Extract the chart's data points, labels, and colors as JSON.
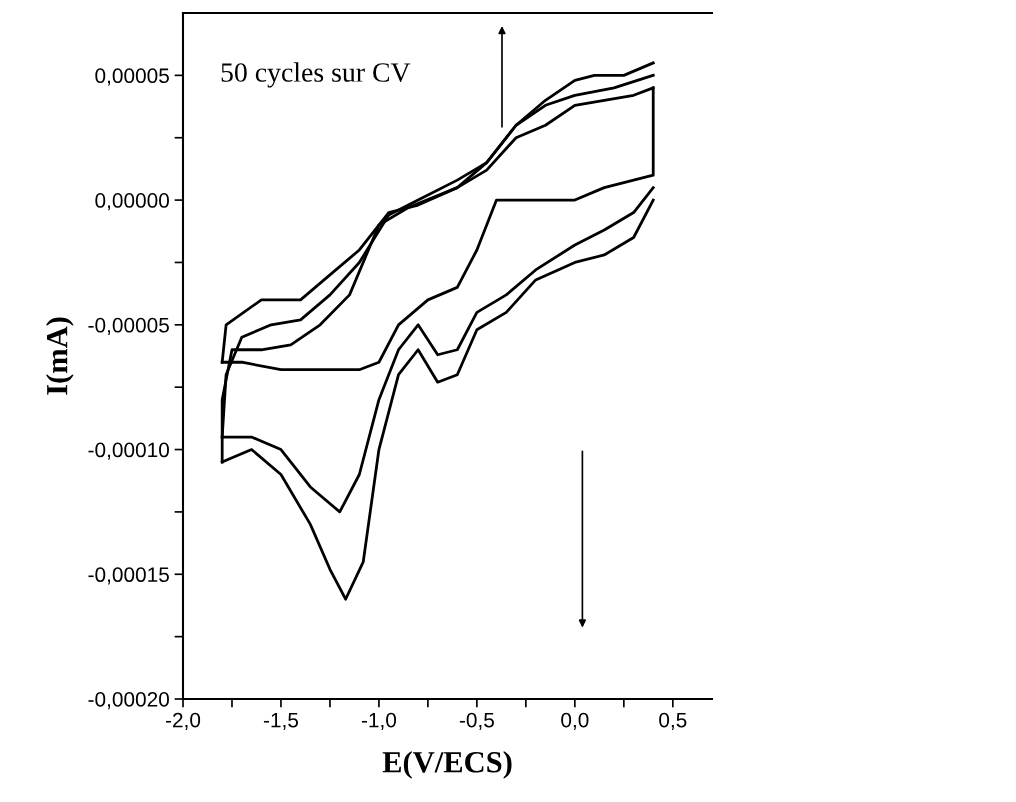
{
  "chart_data": {
    "type": "line",
    "xlabel": "E(V/ECS)",
    "ylabel": "I(mA)",
    "annotations": [
      "50 cycles sur CV"
    ],
    "xlim": [
      -2.0,
      0.7
    ],
    "ylim": [
      -0.0002,
      7.5e-05
    ],
    "xticks": [
      {
        "value": -2.0,
        "label": "-2,0"
      },
      {
        "value": -1.75,
        "label": null
      },
      {
        "value": -1.5,
        "label": "-1,5"
      },
      {
        "value": -1.25,
        "label": null
      },
      {
        "value": -1.0,
        "label": "-1,0"
      },
      {
        "value": -0.75,
        "label": null
      },
      {
        "value": -0.5,
        "label": "-0,5"
      },
      {
        "value": -0.25,
        "label": null
      },
      {
        "value": 0.0,
        "label": "0,0"
      },
      {
        "value": 0.25,
        "label": null
      },
      {
        "value": 0.5,
        "label": "0,5"
      }
    ],
    "yticks": [
      {
        "value": -0.0002,
        "label": "-0,00020"
      },
      {
        "value": -0.000175,
        "label": null
      },
      {
        "value": -0.00015,
        "label": "-0,00015"
      },
      {
        "value": -0.000125,
        "label": null
      },
      {
        "value": -0.0001,
        "label": "-0,00010"
      },
      {
        "value": -7.5e-05,
        "label": null
      },
      {
        "value": -5e-05,
        "label": "-0,00005"
      },
      {
        "value": -2.5e-05,
        "label": null
      },
      {
        "value": 0.0,
        "label": "0,00000"
      },
      {
        "value": 2.5e-05,
        "label": null
      },
      {
        "value": 5e-05,
        "label": "0,00005"
      }
    ],
    "grid": false,
    "legend": false,
    "marker": "none",
    "line_style": "solid",
    "series": [
      {
        "color": "#000000",
        "x": [
          0.4,
          0.4,
          0.3,
          0.15,
          0.0,
          -0.2,
          -0.4,
          -0.5,
          -0.6,
          -0.75,
          -0.9,
          -1.0,
          -1.1,
          -1.3,
          -1.5,
          -1.7,
          -1.8
        ],
        "values": [
          4.5e-05,
          1e-05,
          8e-06,
          5e-06,
          0.0,
          0.0,
          0.0,
          -2e-05,
          -3.5e-05,
          -4e-05,
          -5e-05,
          -6.5e-05,
          -6.8e-05,
          -6.8e-05,
          -6.8e-05,
          -6.5e-05,
          -6.5e-05
        ]
      },
      {
        "color": "#000000",
        "x": [
          -1.8,
          -1.78,
          -1.6,
          -1.4,
          -1.25,
          -1.1,
          -0.95,
          -0.8,
          -0.6,
          -0.45,
          -0.3,
          -0.15,
          0.0,
          0.15,
          0.3,
          0.4
        ],
        "values": [
          -6.5e-05,
          -5e-05,
          -4e-05,
          -4e-05,
          -3e-05,
          -2e-05,
          -5e-06,
          -2e-06,
          5e-06,
          1.2e-05,
          2.5e-05,
          3e-05,
          3.8e-05,
          4e-05,
          4.2e-05,
          4.5e-05
        ]
      },
      {
        "color": "#000000",
        "x": [
          0.4,
          0.3,
          0.15,
          0.0,
          -0.2,
          -0.35,
          -0.5,
          -0.6,
          -0.7,
          -0.8,
          -0.9,
          -1.0,
          -1.1,
          -1.2,
          -1.35,
          -1.5,
          -1.65,
          -1.8
        ],
        "values": [
          5e-06,
          -5e-06,
          -1.2e-05,
          -1.8e-05,
          -2.8e-05,
          -3.8e-05,
          -4.5e-05,
          -6e-05,
          -6.2e-05,
          -5e-05,
          -6e-05,
          -8e-05,
          -0.00011,
          -0.000125,
          -0.000115,
          -0.0001,
          -9.5e-05,
          -9.5e-05
        ]
      },
      {
        "color": "#000000",
        "x": [
          -1.8,
          -1.78,
          -1.7,
          -1.55,
          -1.4,
          -1.25,
          -1.1,
          -0.95,
          -0.8,
          -0.6,
          -0.45,
          -0.3,
          -0.15,
          0.0,
          0.2,
          0.4
        ],
        "values": [
          -9.5e-05,
          -7e-05,
          -5.5e-05,
          -5e-05,
          -4.8e-05,
          -3.8e-05,
          -2.5e-05,
          -6e-06,
          0.0,
          8e-06,
          1.5e-05,
          3e-05,
          3.8e-05,
          4.2e-05,
          4.5e-05,
          5e-05
        ]
      },
      {
        "color": "#000000",
        "x": [
          0.4,
          0.3,
          0.15,
          0.0,
          -0.2,
          -0.35,
          -0.5,
          -0.6,
          -0.7,
          -0.8,
          -0.9,
          -1.0,
          -1.08,
          -1.17,
          -1.25,
          -1.35,
          -1.5,
          -1.65,
          -1.8
        ],
        "values": [
          0.0,
          -1.5e-05,
          -2.2e-05,
          -2.5e-05,
          -3.2e-05,
          -4.5e-05,
          -5.2e-05,
          -7e-05,
          -7.3e-05,
          -6e-05,
          -7e-05,
          -0.0001,
          -0.000145,
          -0.00016,
          -0.000148,
          -0.00013,
          -0.00011,
          -0.0001,
          -0.000105
        ]
      },
      {
        "color": "#000000",
        "x": [
          -1.8,
          -1.8,
          -1.75,
          -1.6,
          -1.45,
          -1.3,
          -1.15,
          -1.0,
          -0.85,
          -0.6,
          -0.45,
          -0.3,
          -0.15,
          0.0,
          0.1,
          0.25,
          0.4
        ],
        "values": [
          -0.000105,
          -8e-05,
          -6e-05,
          -6e-05,
          -5.8e-05,
          -5e-05,
          -3.8e-05,
          -1e-05,
          -3e-06,
          5e-06,
          1.5e-05,
          3e-05,
          4e-05,
          4.8e-05,
          5e-05,
          5e-05,
          5.5e-05
        ]
      }
    ]
  }
}
